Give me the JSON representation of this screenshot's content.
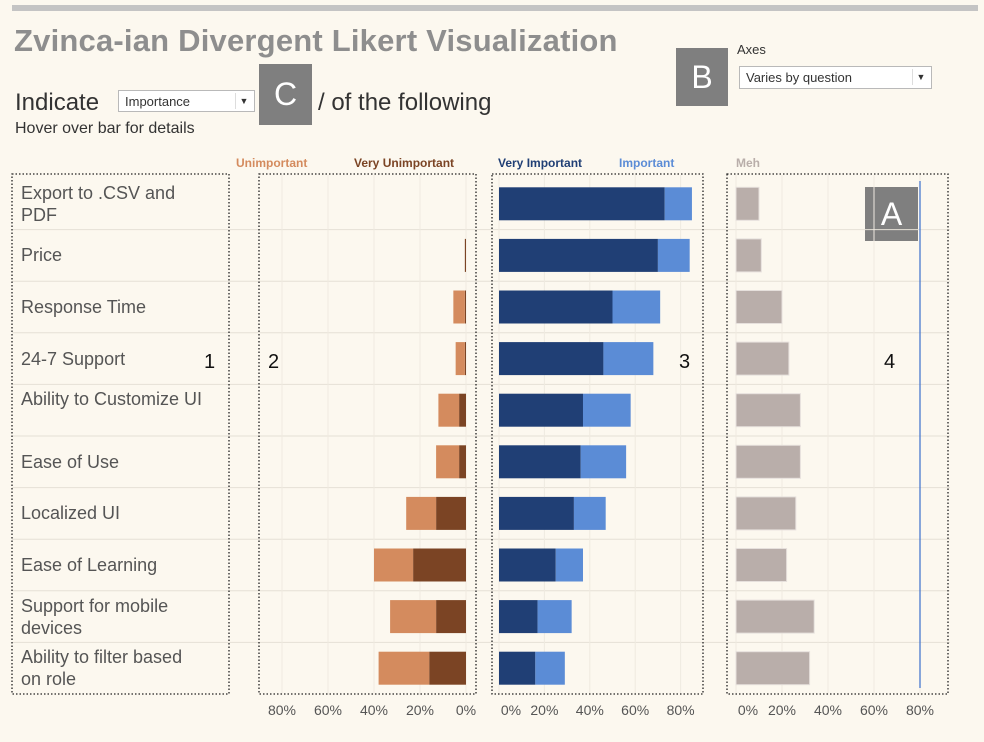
{
  "title": "Zvinca-ian Divergent Likert Visualization",
  "controls": {
    "indicate_prefix": "Indicate",
    "indicate_select": "Importance",
    "indicate_suffix": "/ of the following",
    "hover_note": "Hover over bar for details",
    "axes_label": "Axes",
    "axes_select": "Varies by question"
  },
  "annotations": {
    "box_a": "A",
    "box_b": "B",
    "box_c": "C",
    "section_1": "1",
    "section_2": "2",
    "section_3": "3",
    "section_4": "4"
  },
  "colors": {
    "very_important": "#203f75",
    "important": "#5b8cd6",
    "unimportant": "#d48b5e",
    "very_unimportant": "#7b4424",
    "meh": "#b9aeaa",
    "reference_line": "#3a6fcc"
  },
  "chart_data": {
    "type": "bar",
    "categories": [
      "Export to .CSV and PDF",
      "Price",
      "Response Time",
      "24-7 Support",
      "Ability to Customize UI",
      "Ease of Use",
      "Localized UI",
      "Ease of Learning",
      "Support for mobile devices",
      "Ability to filter based on role"
    ],
    "legend": {
      "negative": [
        "Unimportant",
        "Very Unimportant"
      ],
      "positive": [
        "Very Important",
        "Important"
      ],
      "neutral": [
        "Meh"
      ]
    },
    "series": [
      {
        "name": "Very Important",
        "values": [
          73,
          70,
          50,
          46,
          37,
          36,
          33,
          25,
          17,
          16
        ]
      },
      {
        "name": "Important",
        "values": [
          12,
          14,
          21,
          22,
          21,
          20,
          14,
          12,
          15,
          13
        ]
      },
      {
        "name": "Unimportant",
        "values": [
          0,
          0,
          5,
          4,
          9,
          10,
          13,
          17,
          20,
          22
        ]
      },
      {
        "name": "Very Unimportant",
        "values": [
          0,
          0.5,
          0.5,
          0.5,
          3,
          3,
          13,
          23,
          13,
          16
        ]
      },
      {
        "name": "Meh",
        "values": [
          10,
          11,
          20,
          23,
          28,
          28,
          26,
          22,
          34,
          32
        ]
      }
    ],
    "axes": {
      "negative": {
        "ticks": [
          "80%",
          "60%",
          "40%",
          "20%",
          "0%"
        ],
        "range": [
          0,
          90
        ],
        "reversed": true
      },
      "positive": {
        "ticks": [
          "0%",
          "20%",
          "40%",
          "60%",
          "80%"
        ],
        "range": [
          0,
          90
        ]
      },
      "neutral": {
        "ticks": [
          "0%",
          "20%",
          "40%",
          "60%",
          "80%"
        ],
        "range": [
          0,
          90
        ]
      }
    },
    "reference_line_value": 80,
    "grid": true
  }
}
